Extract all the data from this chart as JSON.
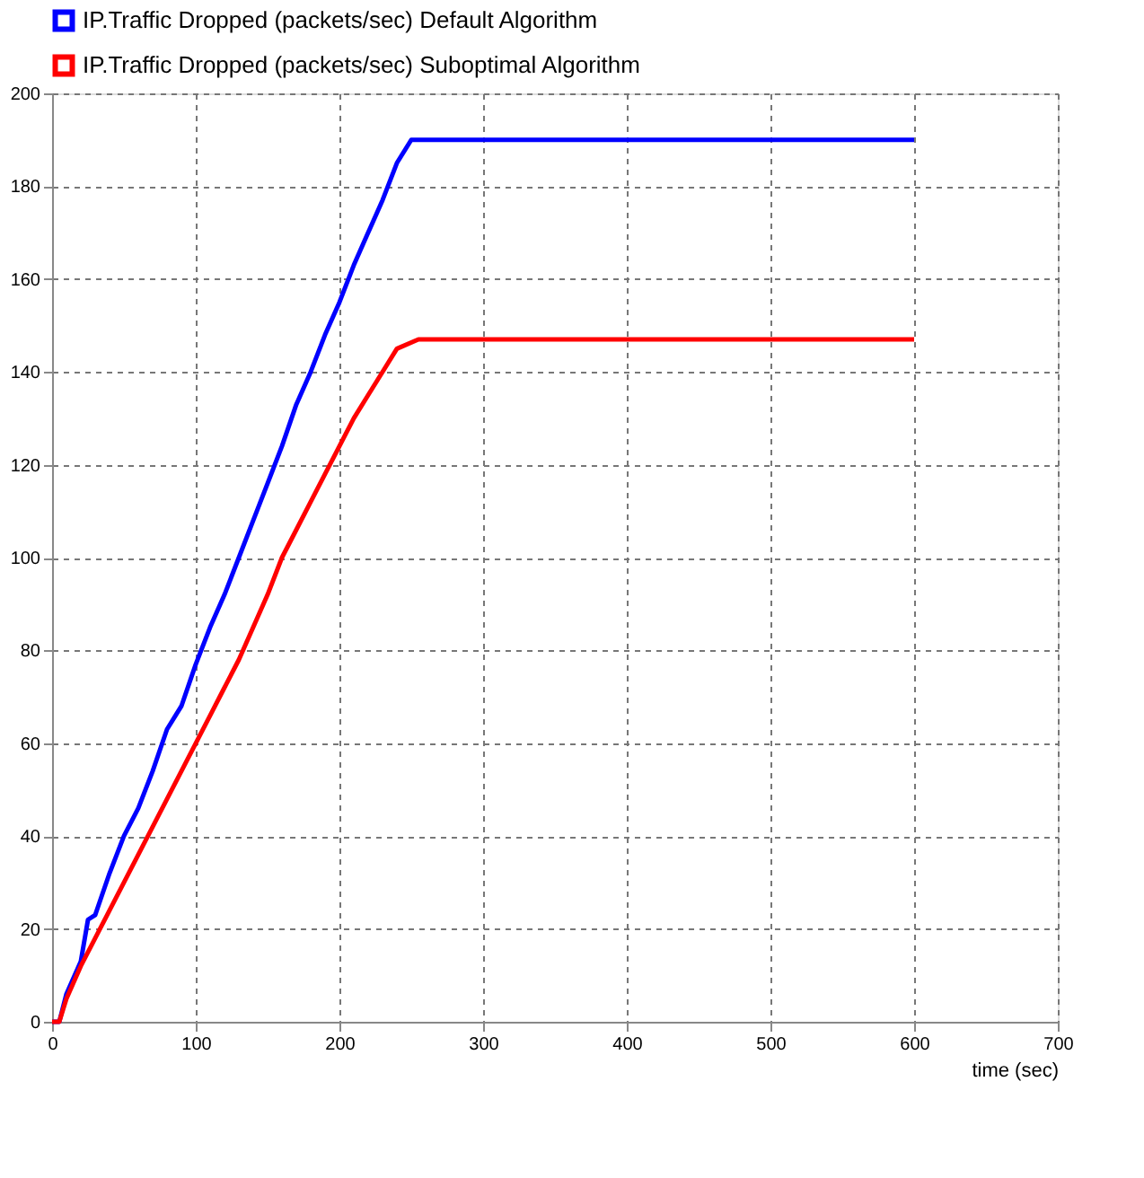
{
  "chart_data": {
    "type": "line",
    "xlabel": "time (sec)",
    "xlim": [
      0,
      700
    ],
    "xticks": [
      0,
      100,
      200,
      300,
      400,
      500,
      600,
      700
    ],
    "ylim": [
      0,
      200
    ],
    "yticks": [
      0,
      20,
      40,
      60,
      80,
      100,
      120,
      140,
      160,
      180,
      200
    ],
    "grid": true,
    "legend": "top",
    "line_style": "solid",
    "marker": "none",
    "series": [
      {
        "name": "IP.Traffic Dropped (packets/sec) Default Algorithm",
        "color": "#0000ff",
        "x": [
          0,
          5,
          10,
          20,
          25,
          30,
          40,
          50,
          60,
          70,
          80,
          90,
          100,
          110,
          120,
          130,
          140,
          150,
          160,
          170,
          180,
          190,
          200,
          210,
          220,
          230,
          240,
          250,
          600
        ],
        "values": [
          0,
          0,
          6,
          13,
          22,
          23,
          32,
          40,
          46,
          54,
          63,
          68,
          77,
          85,
          92,
          100,
          108,
          116,
          124,
          133,
          140,
          148,
          155,
          163,
          170,
          177,
          185,
          190,
          190
        ]
      },
      {
        "name": "IP.Traffic Dropped (packets/sec) Suboptimal Algorithm",
        "color": "#ff0000",
        "x": [
          0,
          5,
          10,
          20,
          30,
          40,
          50,
          60,
          70,
          80,
          90,
          100,
          110,
          120,
          130,
          140,
          150,
          160,
          170,
          180,
          190,
          200,
          210,
          220,
          230,
          240,
          255,
          600
        ],
        "values": [
          0,
          0,
          5,
          12,
          18,
          24,
          30,
          36,
          42,
          48,
          54,
          60,
          66,
          72,
          78,
          85,
          92,
          100,
          106,
          112,
          118,
          124,
          130,
          135,
          140,
          145,
          147,
          147
        ]
      }
    ]
  }
}
